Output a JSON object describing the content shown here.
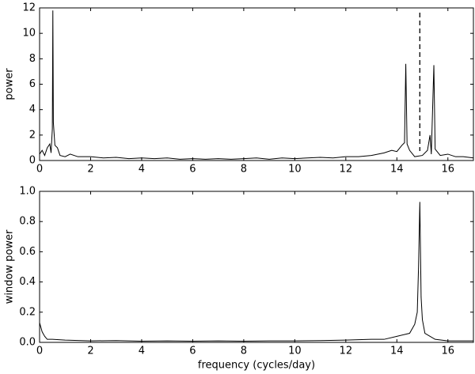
{
  "chart_data": [
    {
      "type": "line",
      "ylabel": "power",
      "color": "#000000",
      "x": [
        0,
        0.1,
        0.2,
        0.3,
        0.4,
        0.45,
        0.5,
        0.52,
        0.54,
        0.6,
        0.7,
        0.8,
        1.0,
        1.2,
        1.5,
        2,
        2.5,
        3,
        3.5,
        4,
        4.5,
        5,
        5.5,
        6,
        6.5,
        7,
        7.5,
        8,
        8.5,
        9,
        9.5,
        10,
        10.5,
        11,
        11.5,
        12,
        12.5,
        13,
        13.5,
        13.8,
        14.0,
        14.2,
        14.3,
        14.35,
        14.4,
        14.5,
        14.7,
        15.0,
        15.2,
        15.3,
        15.35,
        15.45,
        15.5,
        15.7,
        16,
        16.3,
        16.6,
        17
      ],
      "values": [
        0.5,
        0.8,
        0.4,
        1.0,
        1.3,
        0.6,
        2.5,
        11.8,
        3,
        1.2,
        1.0,
        0.4,
        0.3,
        0.5,
        0.3,
        0.3,
        0.2,
        0.25,
        0.15,
        0.2,
        0.15,
        0.2,
        0.1,
        0.15,
        0.1,
        0.15,
        0.1,
        0.15,
        0.2,
        0.1,
        0.2,
        0.15,
        0.2,
        0.25,
        0.2,
        0.3,
        0.3,
        0.4,
        0.6,
        0.8,
        0.7,
        1.2,
        1.4,
        7.6,
        1.3,
        0.8,
        0.3,
        0.4,
        0.8,
        2.0,
        0.5,
        7.5,
        0.9,
        0.4,
        0.5,
        0.3,
        0.3,
        0.2
      ],
      "vline": 14.9,
      "vline_style": "dashed",
      "xlim": [
        0,
        17
      ],
      "xticks": [
        0,
        2,
        4,
        6,
        8,
        10,
        12,
        14,
        16
      ],
      "ylim": [
        0,
        12
      ],
      "yticks": [
        0,
        2,
        4,
        6,
        8,
        10,
        12
      ]
    },
    {
      "type": "line",
      "ylabel": "window power",
      "xlabel": "frequency  (cycles/day)",
      "color": "#000000",
      "x": [
        0,
        0.05,
        0.1,
        0.2,
        0.3,
        0.5,
        1,
        2,
        3,
        4,
        5,
        6,
        7,
        8,
        9,
        10,
        11,
        12,
        13,
        13.5,
        14,
        14.5,
        14.7,
        14.8,
        14.85,
        14.9,
        14.95,
        15.0,
        15.1,
        15.5,
        16,
        17
      ],
      "values": [
        0.13,
        0.1,
        0.07,
        0.04,
        0.02,
        0.02,
        0.015,
        0.01,
        0.012,
        0.008,
        0.01,
        0.008,
        0.01,
        0.008,
        0.01,
        0.01,
        0.012,
        0.015,
        0.02,
        0.02,
        0.04,
        0.06,
        0.12,
        0.2,
        0.5,
        0.93,
        0.3,
        0.15,
        0.06,
        0.02,
        0.01,
        0.01
      ],
      "xlim": [
        0,
        17
      ],
      "xticks": [
        0,
        2,
        4,
        6,
        8,
        10,
        12,
        14,
        16
      ],
      "ylim": [
        0,
        1
      ],
      "yticks": [
        {
          "value": 0,
          "label": "0.0"
        },
        0.2,
        0.4,
        0.6,
        0.8,
        {
          "value": 1,
          "label": "1.0"
        }
      ]
    }
  ]
}
